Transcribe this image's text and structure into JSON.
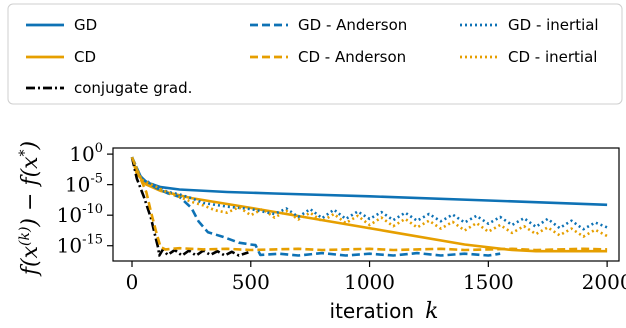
{
  "chart_data": {
    "type": "line",
    "title": "",
    "xlabel": "iteration",
    "xlabel_symbol": "k",
    "ylabel": "f(x^(k)) − f(x*)",
    "ylabel_parts": {
      "f_open": "f(x",
      "k_sup": "(k)",
      "minus": ") − f(x",
      "star_sup": "*",
      "close": ")"
    },
    "xlim": [
      -80,
      2050
    ],
    "ylim_log10": [
      -17.5,
      1
    ],
    "y_scale": "log",
    "x_ticks": [
      0,
      500,
      1000,
      1500,
      2000
    ],
    "x_tick_labels": [
      "0",
      "500",
      "1000",
      "1500",
      "2000"
    ],
    "y_ticks_log10": [
      0,
      -5,
      -10,
      -15
    ],
    "y_tick_labels": [
      {
        "base": "10",
        "exp": "0"
      },
      {
        "base": "10",
        "exp": "-5"
      },
      {
        "base": "10",
        "exp": "-10"
      },
      {
        "base": "10",
        "exp": "-15"
      }
    ],
    "grid": false,
    "legend_placement": "top, above plot, 3 columns",
    "colors": {
      "gd": "#1f77b4",
      "cd": "#e69f00",
      "conjugate": "#000000"
    },
    "series": [
      {
        "name": "GD",
        "color": "#0e72b5",
        "style": "solid",
        "points": [
          [
            0,
            -0.5
          ],
          [
            20,
            -3.0
          ],
          [
            60,
            -4.6
          ],
          [
            120,
            -5.4
          ],
          [
            200,
            -5.8
          ],
          [
            400,
            -6.2
          ],
          [
            600,
            -6.45
          ],
          [
            1000,
            -6.9
          ],
          [
            1500,
            -7.6
          ],
          [
            2000,
            -8.3
          ]
        ]
      },
      {
        "name": "CD",
        "color": "#e69f00",
        "style": "solid",
        "points": [
          [
            0,
            -0.5
          ],
          [
            20,
            -3.2
          ],
          [
            60,
            -5.0
          ],
          [
            120,
            -6.0
          ],
          [
            250,
            -7.2
          ],
          [
            500,
            -8.8
          ],
          [
            800,
            -10.8
          ],
          [
            1100,
            -12.8
          ],
          [
            1400,
            -14.8
          ],
          [
            1600,
            -15.7
          ],
          [
            1700,
            -15.9
          ],
          [
            2000,
            -15.9
          ]
        ]
      },
      {
        "name": "conjugate grad.",
        "color": "#000000",
        "style": "dashdot",
        "points": [
          [
            0,
            -0.5
          ],
          [
            20,
            -4.0
          ],
          [
            50,
            -7.0
          ],
          [
            80,
            -10.5
          ],
          [
            100,
            -13.8
          ],
          [
            110,
            -15.3
          ],
          [
            115,
            -16.6
          ],
          [
            130,
            -15.6
          ],
          [
            150,
            -16.5
          ],
          [
            180,
            -15.7
          ],
          [
            210,
            -16.6
          ],
          [
            240,
            -15.8
          ],
          [
            270,
            -16.6
          ],
          [
            300,
            -15.8
          ],
          [
            330,
            -16.5
          ],
          [
            360,
            -15.9
          ],
          [
            390,
            -16.6
          ],
          [
            420,
            -16.0
          ],
          [
            450,
            -16.6
          ],
          [
            490,
            -16.1
          ]
        ]
      },
      {
        "name": "GD - Anderson",
        "color": "#0e72b5",
        "style": "dashed",
        "points": [
          [
            0,
            -0.5
          ],
          [
            40,
            -4.0
          ],
          [
            100,
            -5.5
          ],
          [
            150,
            -6.4
          ],
          [
            200,
            -7.0
          ],
          [
            250,
            -8.8
          ],
          [
            280,
            -11.0
          ],
          [
            320,
            -12.8
          ],
          [
            380,
            -13.5
          ],
          [
            450,
            -14.5
          ],
          [
            500,
            -14.8
          ],
          [
            520,
            -14.9
          ],
          [
            540,
            -16.5
          ],
          [
            620,
            -16.3
          ],
          [
            700,
            -16.6
          ],
          [
            800,
            -16.2
          ],
          [
            900,
            -16.6
          ],
          [
            1000,
            -16.3
          ],
          [
            1100,
            -16.6
          ],
          [
            1200,
            -16.2
          ],
          [
            1300,
            -16.6
          ],
          [
            1400,
            -16.3
          ],
          [
            1500,
            -16.6
          ],
          [
            1550,
            -16.3
          ]
        ]
      },
      {
        "name": "CD - Anderson",
        "color": "#e69f00",
        "style": "dashed",
        "points": [
          [
            0,
            -0.5
          ],
          [
            30,
            -3.5
          ],
          [
            60,
            -6.2
          ],
          [
            80,
            -9.5
          ],
          [
            100,
            -12.5
          ],
          [
            120,
            -15.2
          ],
          [
            140,
            -15.6
          ],
          [
            200,
            -15.4
          ],
          [
            300,
            -15.6
          ],
          [
            400,
            -15.5
          ],
          [
            500,
            -15.7
          ],
          [
            600,
            -15.6
          ],
          [
            700,
            -15.5
          ],
          [
            800,
            -15.7
          ],
          [
            900,
            -15.6
          ],
          [
            1000,
            -15.5
          ],
          [
            1100,
            -15.7
          ],
          [
            1200,
            -15.6
          ],
          [
            1300,
            -15.5
          ],
          [
            1400,
            -15.7
          ],
          [
            1500,
            -15.6
          ],
          [
            1600,
            -15.5
          ],
          [
            1700,
            -15.7
          ],
          [
            1800,
            -15.6
          ],
          [
            1900,
            -15.5
          ],
          [
            2000,
            -15.6
          ]
        ]
      },
      {
        "name": "GD - inertial",
        "color": "#0e72b5",
        "style": "dotted",
        "points": [
          [
            0,
            -0.5
          ],
          [
            40,
            -4.0
          ],
          [
            100,
            -5.2
          ],
          [
            150,
            -6.2
          ],
          [
            200,
            -6.6
          ],
          [
            250,
            -7.2
          ],
          [
            300,
            -8.0
          ],
          [
            400,
            -8.6
          ],
          [
            500,
            -9.0
          ],
          [
            600,
            -9.8
          ],
          [
            650,
            -8.9
          ],
          [
            700,
            -10.3
          ],
          [
            750,
            -9.0
          ],
          [
            800,
            -10.5
          ],
          [
            850,
            -9.1
          ],
          [
            900,
            -10.6
          ],
          [
            950,
            -9.4
          ],
          [
            1000,
            -10.6
          ],
          [
            1050,
            -9.5
          ],
          [
            1100,
            -10.8
          ],
          [
            1150,
            -9.6
          ],
          [
            1200,
            -10.9
          ],
          [
            1250,
            -9.8
          ],
          [
            1300,
            -11.0
          ],
          [
            1350,
            -9.9
          ],
          [
            1400,
            -11.2
          ],
          [
            1450,
            -10.1
          ],
          [
            1500,
            -11.4
          ],
          [
            1550,
            -10.3
          ],
          [
            1600,
            -11.6
          ],
          [
            1650,
            -10.5
          ],
          [
            1700,
            -11.9
          ],
          [
            1750,
            -10.6
          ],
          [
            1800,
            -12.1
          ],
          [
            1850,
            -10.9
          ],
          [
            1900,
            -12.3
          ],
          [
            1950,
            -11.2
          ],
          [
            2000,
            -12.0
          ]
        ]
      },
      {
        "name": "CD - inertial",
        "color": "#e69f00",
        "style": "dotted",
        "points": [
          [
            0,
            -0.5
          ],
          [
            40,
            -4.2
          ],
          [
            100,
            -5.3
          ],
          [
            150,
            -6.3
          ],
          [
            200,
            -7.0
          ],
          [
            250,
            -7.8
          ],
          [
            300,
            -8.4
          ],
          [
            350,
            -9.2
          ],
          [
            400,
            -9.6
          ],
          [
            450,
            -8.7
          ],
          [
            500,
            -10.0
          ],
          [
            550,
            -9.0
          ],
          [
            600,
            -10.4
          ],
          [
            650,
            -9.3
          ],
          [
            700,
            -10.7
          ],
          [
            750,
            -9.6
          ],
          [
            800,
            -11.0
          ],
          [
            850,
            -9.8
          ],
          [
            900,
            -11.3
          ],
          [
            950,
            -10.1
          ],
          [
            1000,
            -11.6
          ],
          [
            1050,
            -10.4
          ],
          [
            1100,
            -11.8
          ],
          [
            1150,
            -10.6
          ],
          [
            1200,
            -12.0
          ],
          [
            1250,
            -10.9
          ],
          [
            1300,
            -12.2
          ],
          [
            1350,
            -11.1
          ],
          [
            1400,
            -12.5
          ],
          [
            1450,
            -11.3
          ],
          [
            1500,
            -12.7
          ],
          [
            1550,
            -11.6
          ],
          [
            1600,
            -12.9
          ],
          [
            1650,
            -11.8
          ],
          [
            1700,
            -13.1
          ],
          [
            1750,
            -12.0
          ],
          [
            1800,
            -13.3
          ],
          [
            1850,
            -12.2
          ],
          [
            1900,
            -13.5
          ],
          [
            1950,
            -12.4
          ],
          [
            2000,
            -13.4
          ]
        ]
      }
    ],
    "legend": {
      "entries": [
        {
          "label": "GD",
          "color": "#0e72b5",
          "style": "solid"
        },
        {
          "label": "GD - Anderson",
          "color": "#0e72b5",
          "style": "dashed"
        },
        {
          "label": "GD - inertial",
          "color": "#0e72b5",
          "style": "dotted"
        },
        {
          "label": "CD",
          "color": "#e69f00",
          "style": "solid"
        },
        {
          "label": "CD - Anderson",
          "color": "#e69f00",
          "style": "dashed"
        },
        {
          "label": "CD - inertial",
          "color": "#e69f00",
          "style": "dotted"
        },
        {
          "label": "conjugate grad.",
          "color": "#000000",
          "style": "dashdot"
        }
      ]
    }
  }
}
